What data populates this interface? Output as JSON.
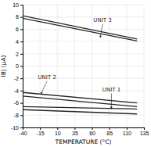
{
  "chart_data": {
    "type": "line",
    "xlabel": "TEMPERATURE (°C)",
    "ylabel": "IB| (µA)",
    "x": [
      -40,
      125
    ],
    "series": [
      {
        "values": [
          8.2,
          4.4
        ]
      },
      {
        "values": [
          7.8,
          4.1
        ]
      },
      {
        "values": [
          -4.3,
          -6.0
        ]
      },
      {
        "values": [
          -4.9,
          -6.6
        ]
      },
      {
        "values": [
          -6.6,
          -7.0
        ]
      },
      {
        "values": [
          -7.1,
          -7.8
        ]
      }
    ],
    "color": "#222222",
    "xlim": [
      -40,
      135
    ],
    "ylim": [
      -10,
      10
    ],
    "xticks": [
      -40,
      -15,
      10,
      35,
      60,
      85,
      110,
      135
    ],
    "yticks": [
      -10,
      -8,
      -6,
      -4,
      -2,
      0,
      2,
      4,
      6,
      8,
      10
    ],
    "grid": true,
    "annotations": [
      {
        "text": "UNIT 3",
        "x": 62,
        "y": 7.0,
        "arrow_x": 72,
        "arrow_y": 4.6
      },
      {
        "text": "UNIT 2",
        "x": -18,
        "y": -2.3,
        "arrow_x": -14,
        "arrow_y": -4.6
      },
      {
        "text": "UNIT 1",
        "x": 75,
        "y": -4.3,
        "arrow_x": 88,
        "arrow_y": -7.0
      }
    ]
  }
}
